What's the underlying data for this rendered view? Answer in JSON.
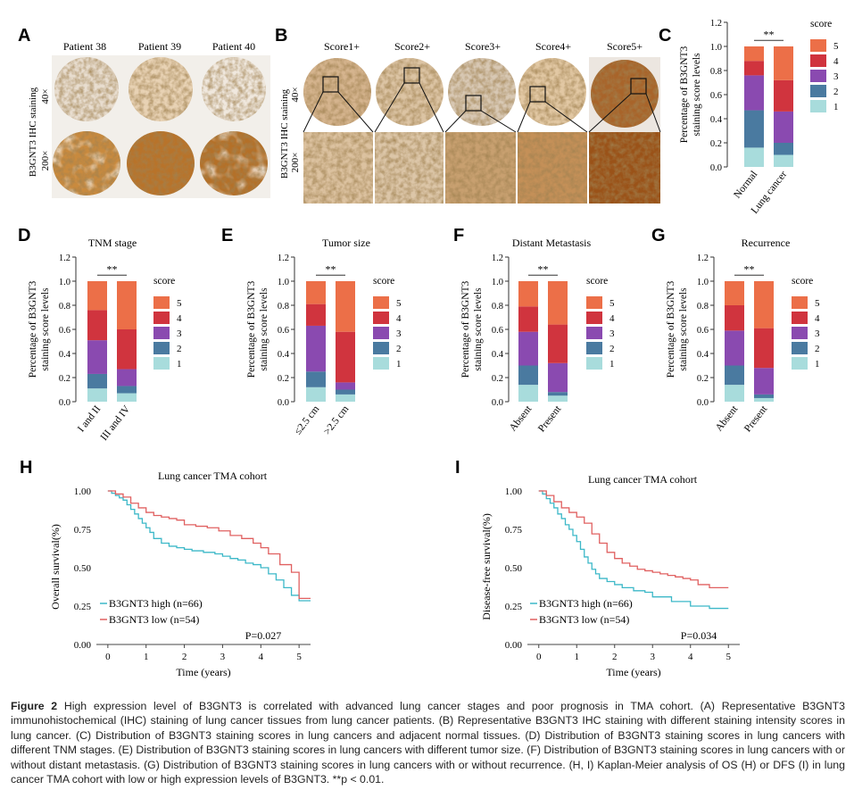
{
  "panels": {
    "A": {
      "letter": "A",
      "patients": [
        "Patient 38",
        "Patient 39",
        "Patient 40"
      ],
      "ylabel": "B3GNT3 IHC staining",
      "mag_low": "40×",
      "mag_high": "200×"
    },
    "B": {
      "letter": "B",
      "scores": [
        "Score1+",
        "Score2+",
        "Score3+",
        "Score4+",
        "Score5+"
      ],
      "ylabel": "B3GNT3 IHC staining",
      "mag_low": "40×",
      "mag_high": "200×"
    }
  },
  "colors": {
    "score1": "#a8dcdc",
    "score2": "#4a7aa0",
    "score3": "#8a4ab0",
    "score4": "#d0343e",
    "score5": "#ec6f48",
    "high_curve": "#3cb8c8",
    "low_curve": "#e06060"
  },
  "score_legend": {
    "title": "score",
    "labels": [
      "5",
      "4",
      "3",
      "2",
      "1"
    ]
  },
  "chart_data": [
    {
      "panel": "C",
      "type": "bar",
      "stacked": true,
      "title": "",
      "categories": [
        "Normal",
        "Lung cancer"
      ],
      "series": [
        {
          "name": "1",
          "values": [
            0.16,
            0.1
          ]
        },
        {
          "name": "2",
          "values": [
            0.31,
            0.1
          ]
        },
        {
          "name": "3",
          "values": [
            0.29,
            0.26
          ]
        },
        {
          "name": "4",
          "values": [
            0.12,
            0.26
          ]
        },
        {
          "name": "5",
          "values": [
            0.12,
            0.28
          ]
        }
      ],
      "ylabel": [
        "Percentage of B3GNT3",
        "staining score levels"
      ],
      "ylim": [
        0,
        1.2
      ],
      "yticks": [
        "0.0",
        "0.2",
        "0.4",
        "0.6",
        "0.8",
        "1.0",
        "1.2"
      ],
      "significance": "**"
    },
    {
      "panel": "D",
      "type": "bar",
      "stacked": true,
      "title": "TNM stage",
      "categories": [
        "I and II",
        "III and IV"
      ],
      "series": [
        {
          "name": "1",
          "values": [
            0.11,
            0.07
          ]
        },
        {
          "name": "2",
          "values": [
            0.12,
            0.06
          ]
        },
        {
          "name": "3",
          "values": [
            0.28,
            0.14
          ]
        },
        {
          "name": "4",
          "values": [
            0.25,
            0.33
          ]
        },
        {
          "name": "5",
          "values": [
            0.24,
            0.4
          ]
        }
      ],
      "ylabel": [
        "Percentage of B3GNT3",
        "staining score levels"
      ],
      "ylim": [
        0,
        1.2
      ],
      "yticks": [
        "0.0",
        "0.2",
        "0.4",
        "0.6",
        "0.8",
        "1.0",
        "1.2"
      ],
      "significance": "**"
    },
    {
      "panel": "E",
      "type": "bar",
      "stacked": true,
      "title": "Tumor size",
      "categories": [
        "≤2.5 cm",
        ">2.5 cm"
      ],
      "series": [
        {
          "name": "1",
          "values": [
            0.12,
            0.06
          ]
        },
        {
          "name": "2",
          "values": [
            0.13,
            0.04
          ]
        },
        {
          "name": "3",
          "values": [
            0.38,
            0.06
          ]
        },
        {
          "name": "4",
          "values": [
            0.18,
            0.42
          ]
        },
        {
          "name": "5",
          "values": [
            0.19,
            0.42
          ]
        }
      ],
      "ylabel": [
        "Percentage of B3GNT3",
        "staining score levels"
      ],
      "ylim": [
        0,
        1.2
      ],
      "yticks": [
        "0.0",
        "0.2",
        "0.4",
        "0.6",
        "0.8",
        "1.0",
        "1.2"
      ],
      "significance": "**"
    },
    {
      "panel": "F",
      "type": "bar",
      "stacked": true,
      "title": "Distant Metastasis",
      "categories": [
        "Absent",
        "Present"
      ],
      "series": [
        {
          "name": "1",
          "values": [
            0.14,
            0.05
          ]
        },
        {
          "name": "2",
          "values": [
            0.16,
            0.03
          ]
        },
        {
          "name": "3",
          "values": [
            0.28,
            0.24
          ]
        },
        {
          "name": "4",
          "values": [
            0.21,
            0.32
          ]
        },
        {
          "name": "5",
          "values": [
            0.21,
            0.36
          ]
        }
      ],
      "ylabel": [
        "Percentage of B3GNT3",
        "staining score levels"
      ],
      "ylim": [
        0,
        1.2
      ],
      "yticks": [
        "0.0",
        "0.2",
        "0.4",
        "0.6",
        "0.8",
        "1.0",
        "1.2"
      ],
      "significance": "**"
    },
    {
      "panel": "G",
      "type": "bar",
      "stacked": true,
      "title": "Recurrence",
      "categories": [
        "Absent",
        "Present"
      ],
      "series": [
        {
          "name": "1",
          "values": [
            0.14,
            0.03
          ]
        },
        {
          "name": "2",
          "values": [
            0.16,
            0.03
          ]
        },
        {
          "name": "3",
          "values": [
            0.29,
            0.22
          ]
        },
        {
          "name": "4",
          "values": [
            0.21,
            0.33
          ]
        },
        {
          "name": "5",
          "values": [
            0.2,
            0.39
          ]
        }
      ],
      "ylabel": [
        "Percentage of B3GNT3",
        "staining score levels"
      ],
      "ylim": [
        0,
        1.2
      ],
      "yticks": [
        "0.0",
        "0.2",
        "0.4",
        "0.6",
        "0.8",
        "1.0",
        "1.2"
      ],
      "significance": "**"
    },
    {
      "panel": "H",
      "type": "line",
      "step": true,
      "title": "Lung cancer TMA cohort",
      "xlabel": "Time (years)",
      "ylabel": "Overall survival(%)",
      "xlim": [
        -0.3,
        5.3
      ],
      "ylim": [
        0,
        1.0
      ],
      "xticks": [
        "0",
        "1",
        "2",
        "3",
        "4",
        "5"
      ],
      "yticks": [
        "0.00",
        "0.25",
        "0.50",
        "0.75",
        "1.00"
      ],
      "series": [
        {
          "name": "B3GNT3 high (n=66)",
          "x": [
            0,
            0.1,
            0.2,
            0.3,
            0.4,
            0.5,
            0.6,
            0.7,
            0.8,
            0.9,
            1.0,
            1.1,
            1.2,
            1.4,
            1.6,
            1.8,
            2.0,
            2.2,
            2.5,
            2.8,
            3.0,
            3.2,
            3.4,
            3.6,
            3.8,
            4.0,
            4.2,
            4.4,
            4.6,
            4.8,
            5.0,
            5.3
          ],
          "y": [
            1.0,
            0.985,
            0.97,
            0.955,
            0.94,
            0.91,
            0.88,
            0.85,
            0.82,
            0.79,
            0.76,
            0.73,
            0.69,
            0.66,
            0.64,
            0.63,
            0.62,
            0.61,
            0.6,
            0.59,
            0.575,
            0.56,
            0.55,
            0.53,
            0.52,
            0.5,
            0.46,
            0.42,
            0.37,
            0.32,
            0.285,
            0.285
          ]
        },
        {
          "name": "B3GNT3 low (n=54)",
          "x": [
            0,
            0.2,
            0.4,
            0.6,
            0.8,
            1.0,
            1.2,
            1.4,
            1.6,
            1.8,
            2.0,
            2.3,
            2.6,
            2.9,
            3.2,
            3.5,
            3.8,
            4.0,
            4.2,
            4.5,
            4.8,
            5.0,
            5.3
          ],
          "y": [
            1.0,
            0.98,
            0.96,
            0.92,
            0.89,
            0.86,
            0.84,
            0.83,
            0.82,
            0.81,
            0.78,
            0.77,
            0.76,
            0.74,
            0.71,
            0.69,
            0.66,
            0.63,
            0.59,
            0.52,
            0.47,
            0.3,
            0.3
          ]
        }
      ],
      "pvalue": "P=0.027"
    },
    {
      "panel": "I",
      "type": "line",
      "step": true,
      "title": "Lung cancer TMA cohort",
      "xlabel": "Time (years)",
      "ylabel": "Disease-free survival(%)",
      "xlim": [
        -0.3,
        5.3
      ],
      "ylim": [
        0,
        1.0
      ],
      "xticks": [
        "0",
        "1",
        "2",
        "3",
        "4",
        "5"
      ],
      "yticks": [
        "0.00",
        "0.25",
        "0.50",
        "0.75",
        "1.00"
      ],
      "series": [
        {
          "name": "B3GNT3 high (n=66)",
          "x": [
            0,
            0.1,
            0.2,
            0.3,
            0.4,
            0.5,
            0.6,
            0.7,
            0.8,
            0.9,
            1.0,
            1.1,
            1.2,
            1.3,
            1.4,
            1.5,
            1.6,
            1.8,
            2.0,
            2.2,
            2.5,
            2.8,
            3.0,
            3.5,
            4.0,
            4.5,
            5.0
          ],
          "y": [
            1.0,
            0.98,
            0.95,
            0.92,
            0.89,
            0.85,
            0.82,
            0.78,
            0.75,
            0.71,
            0.67,
            0.62,
            0.57,
            0.53,
            0.49,
            0.46,
            0.43,
            0.41,
            0.39,
            0.37,
            0.35,
            0.34,
            0.31,
            0.28,
            0.25,
            0.235,
            0.235
          ]
        },
        {
          "name": "B3GNT3 low (n=54)",
          "x": [
            0,
            0.2,
            0.4,
            0.6,
            0.8,
            1.0,
            1.2,
            1.4,
            1.6,
            1.8,
            2.0,
            2.2,
            2.4,
            2.6,
            2.8,
            3.0,
            3.2,
            3.4,
            3.6,
            3.8,
            4.0,
            4.2,
            4.5,
            5.0
          ],
          "y": [
            1.0,
            0.97,
            0.93,
            0.89,
            0.86,
            0.83,
            0.79,
            0.72,
            0.66,
            0.6,
            0.56,
            0.53,
            0.51,
            0.49,
            0.48,
            0.47,
            0.46,
            0.45,
            0.44,
            0.43,
            0.42,
            0.39,
            0.37,
            0.37
          ]
        }
      ],
      "pvalue": "P=0.034"
    }
  ],
  "caption": {
    "prefix": "Figure 2",
    "text": "High expression level of B3GNT3 is correlated with advanced lung cancer stages and poor prognosis in TMA cohort. (A) Representative B3GNT3 immunohistochemical (IHC) staining of lung cancer tissues from lung cancer patients. (B) Representative B3GNT3 IHC staining with different staining intensity scores in lung cancer. (C) Distribution of B3GNT3 staining scores in lung cancers and adjacent normal tissues. (D) Distribution of B3GNT3 staining scores in lung cancers with different TNM stages. (E) Distribution of B3GNT3 staining scores in lung cancers with different tumor size. (F) Distribution of B3GNT3 staining scores in lung cancers with or without distant metastasis. (G) Distribution of B3GNT3 staining scores in lung cancers with or without recurrence. (H, I) Kaplan-Meier analysis of OS (H) or DFS (I) in lung cancer TMA cohort with low or high expression levels of B3GNT3. **p < 0.01."
  }
}
